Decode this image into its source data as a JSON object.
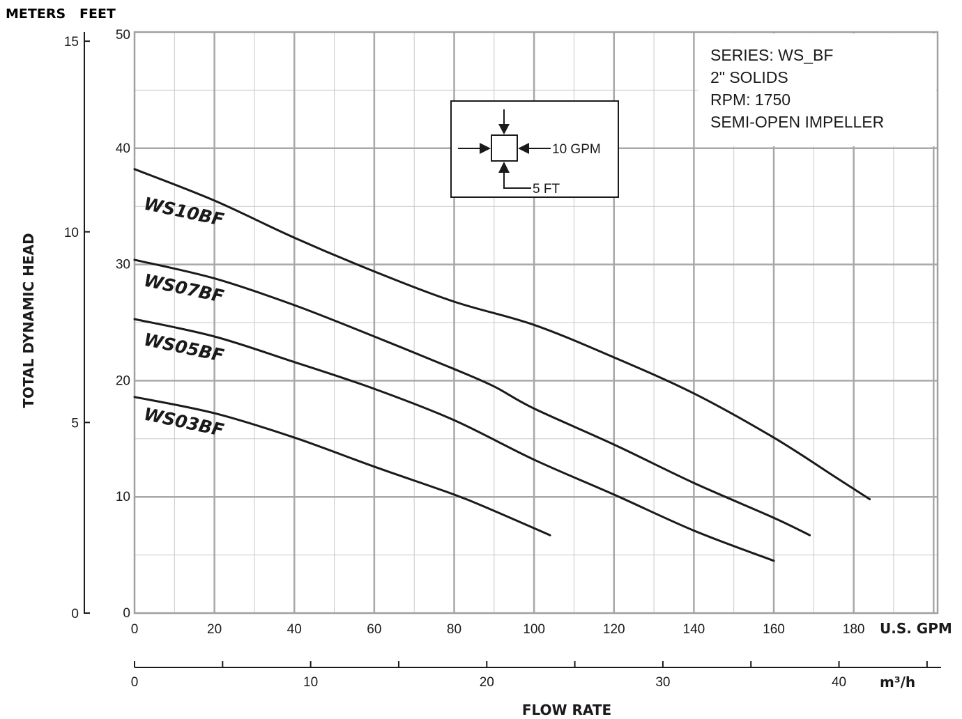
{
  "chart_data": {
    "type": "line",
    "title": "",
    "y_left_header": "METERS",
    "y_right_header": "FEET",
    "ylabel": "TOTAL DYNAMIC HEAD",
    "xlabel": "FLOW RATE",
    "x_unit": "U.S. GPM",
    "x2_unit": "m³/h",
    "x_ticks": [
      "0",
      "20",
      "40",
      "60",
      "80",
      "100",
      "120",
      "140",
      "160",
      "180"
    ],
    "x_tick_values": [
      0,
      20,
      40,
      60,
      80,
      100,
      120,
      140,
      160,
      180
    ],
    "x2_ticks": [
      "0",
      "10",
      "20",
      "30",
      "40"
    ],
    "x2_tick_values": [
      0,
      10,
      20,
      30,
      40
    ],
    "y_feet_ticks": [
      "0",
      "10",
      "20",
      "30",
      "40",
      "50"
    ],
    "y_feet_tick_values": [
      0,
      10,
      20,
      30,
      40,
      50
    ],
    "y_meter_ticks": [
      "0",
      "5",
      "10",
      "15"
    ],
    "y_meter_tick_values": [
      0,
      5,
      10,
      15
    ],
    "xlim": [
      0,
      201
    ],
    "ylim": [
      0,
      50
    ],
    "x2lim": [
      0,
      45.6
    ],
    "grid": true,
    "series": [
      {
        "name": "WS10BF",
        "x": [
          0,
          20,
          40,
          60,
          80,
          100,
          120,
          140,
          160,
          175,
          184
        ],
        "y": [
          38.2,
          35.5,
          32.3,
          29.4,
          26.8,
          24.8,
          22.0,
          18.9,
          15.1,
          11.8,
          9.8
        ]
      },
      {
        "name": "WS07BF",
        "x": [
          0,
          20,
          40,
          60,
          80,
          90,
          100,
          120,
          140,
          160,
          169
        ],
        "y": [
          30.4,
          28.8,
          26.5,
          23.8,
          21.0,
          19.5,
          17.6,
          14.5,
          11.2,
          8.2,
          6.7
        ]
      },
      {
        "name": "WS05BF",
        "x": [
          0,
          20,
          40,
          60,
          80,
          100,
          120,
          140,
          160
        ],
        "y": [
          25.3,
          23.8,
          21.6,
          19.3,
          16.6,
          13.2,
          10.2,
          7.1,
          4.5
        ]
      },
      {
        "name": "WS03BF",
        "x": [
          0,
          20,
          40,
          60,
          80,
          90,
          104
        ],
        "y": [
          18.6,
          17.2,
          15.1,
          12.6,
          10.2,
          8.8,
          6.7
        ]
      }
    ],
    "info_box": [
      "SERIES: WS_BF",
      "2\" SOLIDS",
      "RPM: 1750",
      "SEMI-OPEN IMPELLER"
    ],
    "scale_key": {
      "h_label": "10 GPM",
      "v_label": "5 FT"
    },
    "colors": {
      "curve": "#1a1a1a",
      "grid": "#b4b4b4",
      "frame": "#a0a0a0"
    }
  }
}
